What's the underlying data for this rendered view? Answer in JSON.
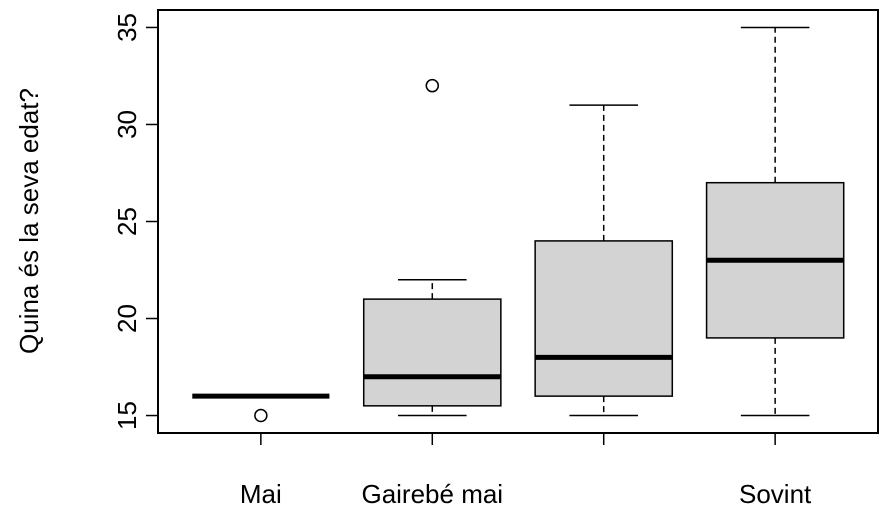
{
  "chart_data": {
    "type": "boxplot",
    "title": "",
    "xlabel": "",
    "ylabel": "Quina és la seva edat?",
    "ylim": [
      14.1,
      35.9
    ],
    "yticks": [
      15,
      20,
      25,
      30,
      35
    ],
    "grid": false,
    "categories": [
      "Mai",
      "Gairebé mai",
      "",
      "Sovint"
    ],
    "boxes": [
      {
        "label": "Mai",
        "min": 16,
        "q1": 16,
        "median": 16,
        "q3": 16,
        "max": 16,
        "outliers": [
          15
        ]
      },
      {
        "label": "Gairebé mai",
        "min": 15,
        "q1": 15.5,
        "median": 17,
        "q3": 21,
        "max": 22,
        "outliers": [
          32
        ]
      },
      {
        "label": "",
        "min": 15,
        "q1": 16,
        "median": 18,
        "q3": 24,
        "max": 31,
        "outliers": []
      },
      {
        "label": "Sovint",
        "min": 15,
        "q1": 19,
        "median": 23,
        "q3": 27,
        "max": 35,
        "outliers": []
      }
    ],
    "colors": {
      "box_fill": "#d3d3d3",
      "stroke": "#000000"
    }
  }
}
